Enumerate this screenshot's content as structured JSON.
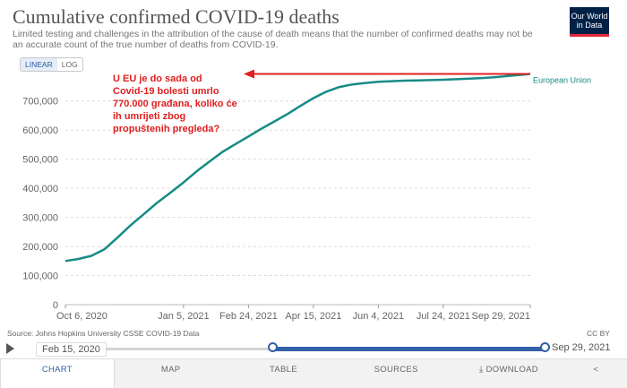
{
  "header": {
    "title": "Cumulative confirmed COVID-19 deaths",
    "subtitle": "Limited testing and challenges in the attribution of the cause of death means that the number of confirmed deaths may not be an accurate count of the true number of deaths from COVID-19.",
    "logo_line1": "Our World",
    "logo_line2": "in Data"
  },
  "scale_toggle": {
    "linear": "LINEAR",
    "log": "LOG",
    "selected": "LINEAR"
  },
  "chart_data": {
    "type": "line",
    "title": "Cumulative confirmed COVID-19 deaths",
    "x_ticks": [
      "Oct 6, 2020",
      "Jan 5, 2021",
      "Feb 24, 2021",
      "Apr 15, 2021",
      "Jun 4, 2021",
      "Jul 24, 2021",
      "Sep 29, 2021"
    ],
    "y_ticks": [
      "0",
      "100,000",
      "200,000",
      "300,000",
      "400,000",
      "500,000",
      "600,000",
      "700,000"
    ],
    "ylim": [
      0,
      770000
    ],
    "xlim": [
      "2020-10-06",
      "2021-09-29"
    ],
    "grid": "horizontal-dashed",
    "series": [
      {
        "name": "European Union",
        "color": "#178b86",
        "x": [
          "2020-10-06",
          "2020-10-16",
          "2020-10-26",
          "2020-11-05",
          "2020-11-15",
          "2020-11-25",
          "2020-12-05",
          "2020-12-15",
          "2020-12-25",
          "2021-01-05",
          "2021-01-15",
          "2021-01-25",
          "2021-02-04",
          "2021-02-14",
          "2021-02-24",
          "2021-03-06",
          "2021-03-16",
          "2021-03-26",
          "2021-04-05",
          "2021-04-15",
          "2021-04-25",
          "2021-05-05",
          "2021-05-15",
          "2021-05-25",
          "2021-06-04",
          "2021-06-14",
          "2021-06-24",
          "2021-07-04",
          "2021-07-14",
          "2021-07-24",
          "2021-08-03",
          "2021-08-13",
          "2021-08-23",
          "2021-09-02",
          "2021-09-12",
          "2021-09-22",
          "2021-09-29"
        ],
        "y": [
          150000,
          157000,
          168000,
          190000,
          230000,
          272000,
          310000,
          348000,
          382000,
          420000,
          458000,
          492000,
          525000,
          552000,
          578000,
          605000,
          630000,
          655000,
          683000,
          710000,
          732000,
          748000,
          757000,
          762000,
          766000,
          768000,
          770000,
          771000,
          772000,
          773000,
          775000,
          777000,
          779000,
          782000,
          786000,
          790000,
          793000
        ]
      }
    ],
    "annotations": [
      {
        "text": "U EU je do sada od Covid-19 bolesti umrlo 770.000 građana, koliko će ih umrijeti zbog propuštenih pregleda?",
        "color": "#e02020"
      }
    ]
  },
  "footer": {
    "source": "Source: Johns Hopkins University CSSE COVID-19 Data",
    "license": "CC BY"
  },
  "timeline": {
    "start": "Feb 15, 2020",
    "end": "Sep 29, 2021",
    "range_start_fraction": 0.38,
    "range_end_fraction": 1.0
  },
  "tabs": {
    "chart": "CHART",
    "map": "MAP",
    "table": "TABLE",
    "sources": "SOURCES",
    "download": "DOWNLOAD",
    "selected": "CHART"
  }
}
